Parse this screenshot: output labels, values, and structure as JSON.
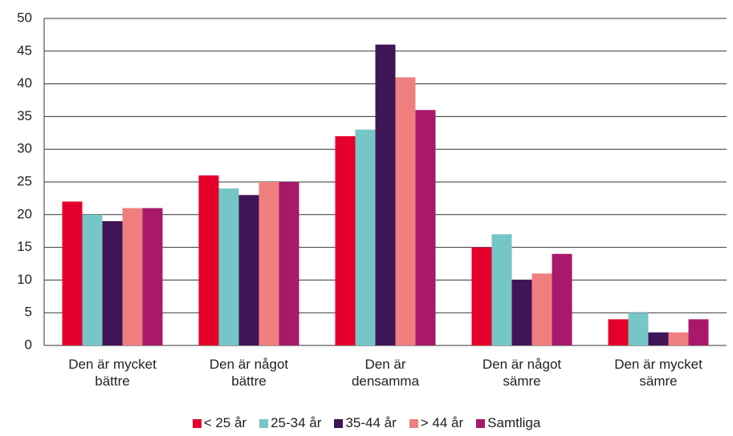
{
  "chart_data": {
    "type": "bar",
    "categories": [
      "Den är mycket\nbättre",
      "Den är något\nbättre",
      "Den är\ndensamma",
      "Den är något\nsämre",
      "Den är mycket\nsämre"
    ],
    "series": [
      {
        "name": "< 25 år",
        "color": "#e4002b",
        "values": [
          22,
          26,
          32,
          15,
          4
        ]
      },
      {
        "name": "25-34 år",
        "color": "#76c6c7",
        "values": [
          20,
          24,
          33,
          17,
          5
        ]
      },
      {
        "name": "35-44 år",
        "color": "#3f1558",
        "values": [
          19,
          23,
          46,
          10,
          2
        ]
      },
      {
        "name": "> 44 år",
        "color": "#ef7f7f",
        "values": [
          21,
          25,
          41,
          11,
          2
        ]
      },
      {
        "name": "Samtliga",
        "color": "#a8196b",
        "values": [
          21,
          25,
          36,
          14,
          4
        ]
      }
    ],
    "ylim": [
      0,
      50
    ],
    "yticks": [
      0,
      5,
      10,
      15,
      20,
      25,
      30,
      35,
      40,
      45,
      50
    ],
    "grid": true,
    "legend": "bottom"
  }
}
